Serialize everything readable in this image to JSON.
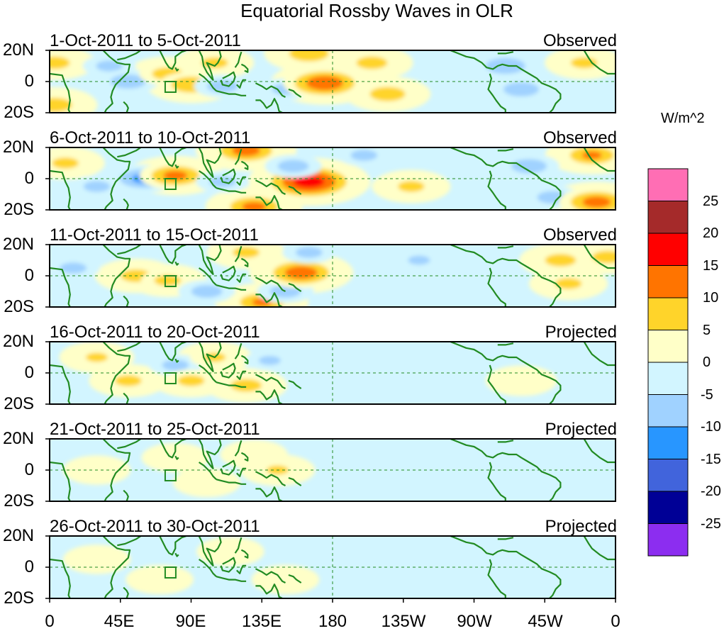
{
  "figure": {
    "title": "Equatorial Rossby Waves in OLR",
    "units": "W/m^2"
  },
  "panels": [
    {
      "date_range": "1-Oct-2011 to 5-Oct-2011",
      "status": "Observed"
    },
    {
      "date_range": "6-Oct-2011 to 10-Oct-2011",
      "status": "Observed"
    },
    {
      "date_range": "11-Oct-2011 to 15-Oct-2011",
      "status": "Observed"
    },
    {
      "date_range": "16-Oct-2011 to 20-Oct-2011",
      "status": "Projected"
    },
    {
      "date_range": "21-Oct-2011 to 25-Oct-2011",
      "status": "Projected"
    },
    {
      "date_range": "26-Oct-2011 to 30-Oct-2011",
      "status": "Projected"
    }
  ],
  "axes": {
    "lat_labels": [
      "20N",
      "0",
      "20S"
    ],
    "lon_labels": [
      "0",
      "45E",
      "90E",
      "135E",
      "180",
      "135W",
      "90W",
      "45W",
      "0"
    ]
  },
  "colorbar": {
    "labels": [
      "25",
      "20",
      "15",
      "10",
      "5",
      "0",
      "-5",
      "-10",
      "-15",
      "-20",
      "-25"
    ],
    "colors": [
      "#ff6eb4",
      "#a52a2a",
      "#ff0000",
      "#ff7400",
      "#ffd42a",
      "#ffffc8",
      "#d2f5ff",
      "#a0d2ff",
      "#2896ff",
      "#4164dc",
      "#000096",
      "#8c2df0"
    ]
  },
  "colors": {
    "coast": "#228b22",
    "ocean_base": "#ffffff"
  },
  "chart_data": {
    "type": "heatmap",
    "title": "Equatorial Rossby Waves in OLR",
    "xlabel": "",
    "ylabel": "",
    "x_range": [
      0,
      360
    ],
    "y_range": [
      -20,
      20
    ],
    "units": "W/m^2",
    "levels": [
      -25,
      -20,
      -15,
      -10,
      -5,
      0,
      5,
      10,
      15,
      20,
      25
    ],
    "anomalies": [
      [
        {
          "lon": 3,
          "lat": 12,
          "value": 7
        },
        {
          "lon": 3,
          "lat": -15,
          "value": 8
        },
        {
          "lon": 38,
          "lat": 10,
          "value": -6
        },
        {
          "lon": 50,
          "lat": 0,
          "value": -8
        },
        {
          "lon": 75,
          "lat": 5,
          "value": 7
        },
        {
          "lon": 90,
          "lat": -2,
          "value": 9
        },
        {
          "lon": 105,
          "lat": 12,
          "value": 6
        },
        {
          "lon": 110,
          "lat": -3,
          "value": -7
        },
        {
          "lon": 150,
          "lat": -5,
          "value": -6
        },
        {
          "lon": 165,
          "lat": 18,
          "value": 9
        },
        {
          "lon": 175,
          "lat": -1,
          "value": 14
        },
        {
          "lon": 205,
          "lat": 12,
          "value": 7
        },
        {
          "lon": 215,
          "lat": -8,
          "value": 8
        },
        {
          "lon": 290,
          "lat": 10,
          "value": -9
        },
        {
          "lon": 300,
          "lat": -5,
          "value": -8
        },
        {
          "lon": 340,
          "lat": 12,
          "value": 6
        }
      ],
      [
        {
          "lon": 10,
          "lat": 10,
          "value": 6
        },
        {
          "lon": 30,
          "lat": -5,
          "value": -6
        },
        {
          "lon": 60,
          "lat": 0,
          "value": -11
        },
        {
          "lon": 80,
          "lat": 2,
          "value": 11
        },
        {
          "lon": 110,
          "lat": -2,
          "value": -6
        },
        {
          "lon": 125,
          "lat": 18,
          "value": 12
        },
        {
          "lon": 130,
          "lat": -18,
          "value": 11
        },
        {
          "lon": 165,
          "lat": -2,
          "value": 18
        },
        {
          "lon": 155,
          "lat": 8,
          "value": -7
        },
        {
          "lon": 200,
          "lat": 15,
          "value": -6
        },
        {
          "lon": 230,
          "lat": -5,
          "value": 6
        },
        {
          "lon": 305,
          "lat": 8,
          "value": -8
        },
        {
          "lon": 320,
          "lat": -12,
          "value": -7
        },
        {
          "lon": 345,
          "lat": 15,
          "value": 10
        },
        {
          "lon": 348,
          "lat": -15,
          "value": 12
        }
      ],
      [
        {
          "lon": 15,
          "lat": 5,
          "value": -6
        },
        {
          "lon": 55,
          "lat": 0,
          "value": 7
        },
        {
          "lon": 75,
          "lat": -3,
          "value": 6
        },
        {
          "lon": 100,
          "lat": -10,
          "value": -7
        },
        {
          "lon": 125,
          "lat": 15,
          "value": 6
        },
        {
          "lon": 135,
          "lat": -17,
          "value": 10
        },
        {
          "lon": 150,
          "lat": -10,
          "value": -7
        },
        {
          "lon": 160,
          "lat": 2,
          "value": 13
        },
        {
          "lon": 165,
          "lat": 15,
          "value": -6
        },
        {
          "lon": 235,
          "lat": 10,
          "value": -5
        },
        {
          "lon": 325,
          "lat": 10,
          "value": 7
        },
        {
          "lon": 330,
          "lat": -5,
          "value": 6
        },
        {
          "lon": 355,
          "lat": 12,
          "value": 7
        }
      ],
      [
        {
          "lon": 30,
          "lat": 10,
          "value": 5
        },
        {
          "lon": 50,
          "lat": -5,
          "value": 6
        },
        {
          "lon": 80,
          "lat": 5,
          "value": -6
        },
        {
          "lon": 90,
          "lat": -5,
          "value": 6
        },
        {
          "lon": 105,
          "lat": 10,
          "value": 5
        },
        {
          "lon": 125,
          "lat": -8,
          "value": 7
        },
        {
          "lon": 140,
          "lat": 8,
          "value": -5
        },
        {
          "lon": 200,
          "lat": 5,
          "value": -3
        },
        {
          "lon": 300,
          "lat": -5,
          "value": 4
        }
      ],
      [
        {
          "lon": 30,
          "lat": 0,
          "value": 3
        },
        {
          "lon": 80,
          "lat": 8,
          "value": 3
        },
        {
          "lon": 100,
          "lat": -8,
          "value": 3
        },
        {
          "lon": 130,
          "lat": 10,
          "value": 3
        },
        {
          "lon": 145,
          "lat": 0,
          "value": 5
        },
        {
          "lon": 240,
          "lat": 0,
          "value": -2
        }
      ],
      [
        {
          "lon": 30,
          "lat": 5,
          "value": 3
        },
        {
          "lon": 70,
          "lat": -8,
          "value": 3
        },
        {
          "lon": 115,
          "lat": 10,
          "value": 3
        },
        {
          "lon": 150,
          "lat": -8,
          "value": 3
        },
        {
          "lon": 250,
          "lat": 0,
          "value": -2
        }
      ]
    ]
  }
}
